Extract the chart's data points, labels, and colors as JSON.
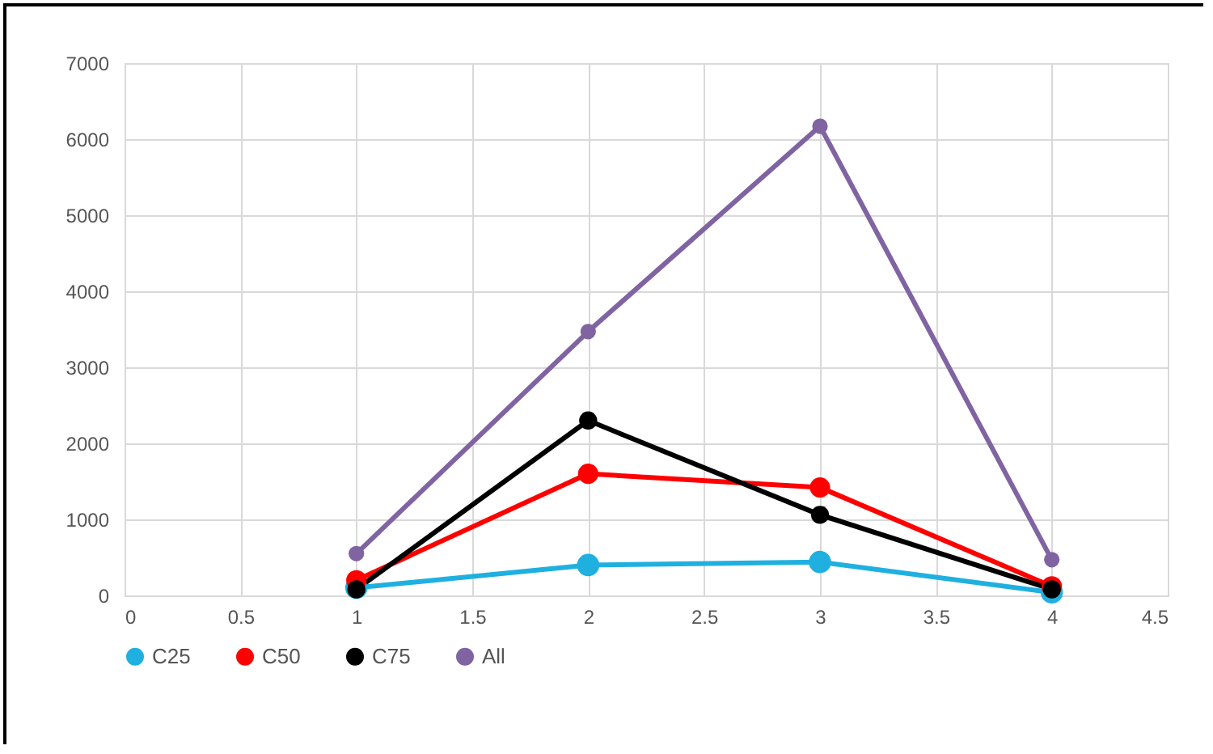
{
  "chart_data": {
    "type": "line",
    "x": [
      1,
      2,
      3,
      4
    ],
    "series": [
      {
        "name": "C25",
        "color": "#1fb0e0",
        "values": [
          100,
          400,
          440,
          40
        ]
      },
      {
        "name": "C50",
        "color": "#ff0000",
        "values": [
          200,
          1600,
          1420,
          120
        ]
      },
      {
        "name": "C75",
        "color": "#000000",
        "values": [
          80,
          2300,
          1060,
          80
        ]
      },
      {
        "name": "All",
        "color": "#8064a2",
        "values": [
          550,
          3470,
          6170,
          470
        ]
      }
    ],
    "xlim": [
      0,
      4.5
    ],
    "xticks": [
      0,
      0.5,
      1,
      1.5,
      2,
      2.5,
      3,
      3.5,
      4,
      4.5
    ],
    "ylim": [
      0,
      7000
    ],
    "yticks": [
      0,
      1000,
      2000,
      3000,
      4000,
      5000,
      6000,
      7000
    ],
    "grid": true,
    "legend": "bottom",
    "marker": "circle",
    "line_style": "solid"
  }
}
